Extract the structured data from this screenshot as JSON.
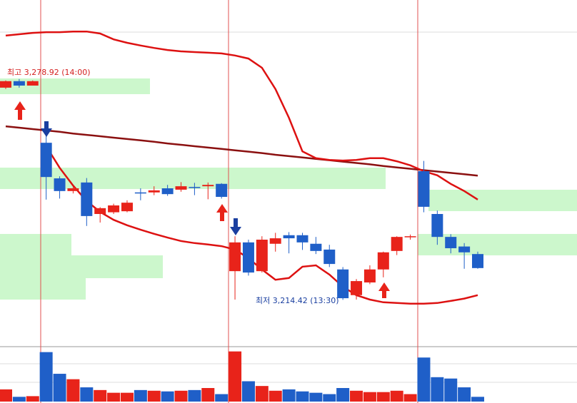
{
  "chart_data": {
    "type": "candlestick",
    "open": [
      3276.4,
      3278.3,
      3277.0,
      3260.3,
      3249.9,
      3246.2,
      3248.7,
      3239.5,
      3240.0,
      3240.3,
      3245.8,
      3245.8,
      3247.0,
      3246.6,
      3247.4,
      3247.6,
      3248.3,
      3222.8,
      3231.2,
      3222.8,
      3230.8,
      3233.3,
      3233.3,
      3230.8,
      3229.1,
      3223.3,
      3215.8,
      3219.5,
      3223.3,
      3228.7,
      3232.8,
      3252.0,
      3239.5,
      3232.8,
      3230.0,
      3227.8
    ],
    "high": [
      3278.5,
      3278.92,
      3278.5,
      3262.4,
      3250.5,
      3247.4,
      3250.0,
      3241.5,
      3242.5,
      3243.5,
      3247.0,
      3247.6,
      3248.0,
      3248.8,
      3248.6,
      3248.7,
      3248.5,
      3233.0,
      3232.0,
      3233.0,
      3234.0,
      3234.2,
      3234.0,
      3232.8,
      3230.5,
      3224.0,
      3220.5,
      3224.5,
      3228.5,
      3233.0,
      3233.5,
      3255.0,
      3240.5,
      3233.6,
      3231.0,
      3228.5
    ],
    "low": [
      3276.0,
      3276.4,
      3277.0,
      3243.7,
      3244.0,
      3245.5,
      3236.0,
      3237.0,
      3239.5,
      3240.0,
      3243.5,
      3245.0,
      3244.8,
      3246.0,
      3245.0,
      3243.8,
      3244.0,
      3214.5,
      3221.5,
      3222.4,
      3228.5,
      3228.0,
      3229.0,
      3227.8,
      3224.0,
      3214.42,
      3214.5,
      3219.0,
      3221.0,
      3227.5,
      3232.0,
      3240.0,
      3230.5,
      3228.0,
      3223.5,
      3223.5
    ],
    "close": [
      3278.3,
      3277.0,
      3278.3,
      3250.3,
      3246.2,
      3247.0,
      3238.9,
      3241.2,
      3242.0,
      3242.8,
      3245.6,
      3246.4,
      3245.3,
      3247.6,
      3247.2,
      3248.0,
      3244.5,
      3231.2,
      3222.4,
      3232.0,
      3232.4,
      3232.4,
      3231.2,
      3228.7,
      3224.9,
      3214.9,
      3219.9,
      3223.3,
      3228.3,
      3232.8,
      3233.0,
      3241.6,
      3232.8,
      3229.5,
      3228.3,
      3223.7
    ],
    "volume": [
      18,
      7,
      8,
      73,
      41,
      33,
      21,
      17,
      13,
      13,
      17,
      16,
      15,
      16,
      17,
      20,
      11,
      74,
      30,
      23,
      16,
      18,
      15,
      13,
      11,
      20,
      16,
      14,
      14,
      16,
      11,
      65,
      36,
      34,
      21,
      7
    ],
    "up_color": "#e8231a",
    "down_color": "#1f5fc8",
    "ylim": [
      3202,
      3302
    ],
    "volume_lim": [
      0,
      80
    ],
    "lines": [
      {
        "color": "#8b1010",
        "values": [
          3265.1,
          3264.7,
          3264.3,
          3263.9,
          3263.5,
          3263.0,
          3262.6,
          3262.2,
          3261.8,
          3261.4,
          3261.0,
          3260.6,
          3260.1,
          3259.7,
          3259.3,
          3258.9,
          3258.5,
          3258.1,
          3257.7,
          3257.3,
          3256.8,
          3256.4,
          3256.0,
          3255.6,
          3255.2,
          3254.8,
          3254.4,
          3254.0,
          3253.5,
          3253.1,
          3252.7,
          3252.3,
          3251.9,
          3251.5,
          3251.1,
          3250.7
        ]
      },
      {
        "color": "#dd1111",
        "values": [
          3291.6,
          3292.0,
          3292.4,
          3292.6,
          3292.6,
          3292.8,
          3292.8,
          3292.2,
          3290.5,
          3289.5,
          3288.7,
          3288.0,
          3287.4,
          3287.0,
          3286.8,
          3286.6,
          3286.4,
          3285.8,
          3284.9,
          3282.2,
          3276.0,
          3267.6,
          3257.8,
          3255.8,
          3255.3,
          3255.1,
          3255.3,
          3255.8,
          3255.8,
          3254.9,
          3253.7,
          3252.0,
          3250.8,
          3248.3,
          3246.2,
          3243.7
        ]
      },
      {
        "color": "#dd1111",
        "values": [
          null,
          null,
          null,
          3259.3,
          3253.0,
          3247.8,
          3243.3,
          3240.1,
          3237.8,
          3236.2,
          3234.9,
          3233.7,
          3232.6,
          3231.6,
          3231.0,
          3230.6,
          3230.1,
          3229.1,
          3226.6,
          3223.3,
          3220.3,
          3220.8,
          3224.1,
          3224.5,
          3221.8,
          3218.3,
          3215.8,
          3214.5,
          3213.7,
          3213.5,
          3213.3,
          3213.3,
          3213.5,
          3214.1,
          3214.8,
          3215.8
        ]
      }
    ],
    "annotations": [
      {
        "text": "최고 3,278.92 (14:00)",
        "color": "#d42020"
      },
      {
        "text": "최저 3,214.42 (13:30)",
        "color": "#1a3fa0"
      }
    ]
  }
}
